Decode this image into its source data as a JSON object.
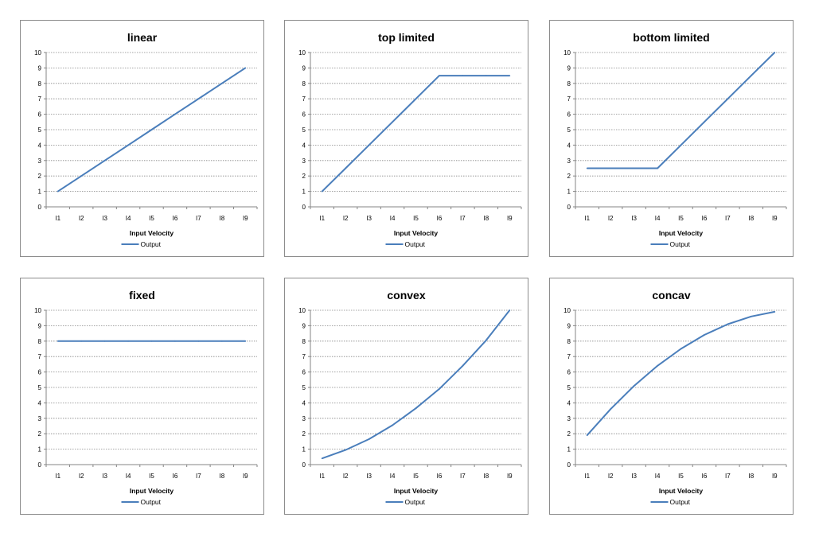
{
  "chart_data": [
    {
      "type": "line",
      "title": "linear",
      "xlabel": "Input Velocity",
      "ylabel": "",
      "categories": [
        "I1",
        "I2",
        "I3",
        "I4",
        "I5",
        "I6",
        "I7",
        "I8",
        "I9"
      ],
      "ylim": [
        0,
        10
      ],
      "yticks": [
        "0",
        "1",
        "2",
        "3",
        "4",
        "5",
        "6",
        "7",
        "8",
        "9",
        "10"
      ],
      "grid": true,
      "legend_position": "bottom",
      "series": [
        {
          "name": "Output",
          "values": [
            1,
            2,
            3,
            4,
            5,
            6,
            7,
            8,
            9
          ]
        }
      ]
    },
    {
      "type": "line",
      "title": "top limited",
      "xlabel": "Input Velocity",
      "ylabel": "",
      "categories": [
        "I1",
        "I2",
        "I3",
        "I4",
        "I5",
        "I6",
        "I7",
        "I8",
        "I9"
      ],
      "ylim": [
        0,
        10
      ],
      "yticks": [
        "0",
        "1",
        "2",
        "3",
        "4",
        "5",
        "6",
        "7",
        "8",
        "9",
        "10"
      ],
      "grid": true,
      "legend_position": "bottom",
      "series": [
        {
          "name": "Output",
          "values": [
            1,
            2.5,
            4,
            5.5,
            7,
            8.5,
            8.5,
            8.5,
            8.5
          ]
        }
      ]
    },
    {
      "type": "line",
      "title": "bottom limited",
      "xlabel": "Input Velocity",
      "ylabel": "",
      "categories": [
        "I1",
        "I2",
        "I3",
        "I4",
        "I5",
        "I6",
        "I7",
        "I8",
        "I9"
      ],
      "ylim": [
        0,
        10
      ],
      "yticks": [
        "0",
        "1",
        "2",
        "3",
        "4",
        "5",
        "6",
        "7",
        "8",
        "9",
        "10"
      ],
      "grid": true,
      "legend_position": "bottom",
      "series": [
        {
          "name": "Output",
          "values": [
            2.5,
            2.5,
            2.5,
            2.5,
            4,
            5.5,
            7,
            8.5,
            10
          ]
        }
      ]
    },
    {
      "type": "line",
      "title": "fixed",
      "xlabel": "Input Velocity",
      "ylabel": "",
      "categories": [
        "I1",
        "I2",
        "I3",
        "I4",
        "I5",
        "I6",
        "I7",
        "I8",
        "I9"
      ],
      "ylim": [
        0,
        10
      ],
      "yticks": [
        "0",
        "1",
        "2",
        "3",
        "4",
        "5",
        "6",
        "7",
        "8",
        "9",
        "10"
      ],
      "grid": true,
      "legend_position": "bottom",
      "series": [
        {
          "name": "Output",
          "values": [
            8,
            8,
            8,
            8,
            8,
            8,
            8,
            8,
            8
          ]
        }
      ]
    },
    {
      "type": "line",
      "title": "convex",
      "xlabel": "Input Velocity",
      "ylabel": "",
      "categories": [
        "I1",
        "I2",
        "I3",
        "I4",
        "I5",
        "I6",
        "I7",
        "I8",
        "I9"
      ],
      "ylim": [
        0,
        10
      ],
      "yticks": [
        "0",
        "1",
        "2",
        "3",
        "4",
        "5",
        "6",
        "7",
        "8",
        "9",
        "10"
      ],
      "grid": true,
      "legend_position": "bottom",
      "series": [
        {
          "name": "Output",
          "values": [
            0.4,
            0.95,
            1.65,
            2.55,
            3.65,
            4.9,
            6.4,
            8.05,
            10
          ]
        }
      ]
    },
    {
      "type": "line",
      "title": "concav",
      "xlabel": "Input Velocity",
      "ylabel": "",
      "categories": [
        "I1",
        "I2",
        "I3",
        "I4",
        "I5",
        "I6",
        "I7",
        "I8",
        "I9"
      ],
      "ylim": [
        0,
        10
      ],
      "yticks": [
        "0",
        "1",
        "2",
        "3",
        "4",
        "5",
        "6",
        "7",
        "8",
        "9",
        "10"
      ],
      "grid": true,
      "legend_position": "bottom",
      "series": [
        {
          "name": "Output",
          "values": [
            1.9,
            3.6,
            5.1,
            6.4,
            7.5,
            8.4,
            9.1,
            9.6,
            9.9
          ]
        }
      ]
    }
  ],
  "colors": {
    "line": "#4a7ebb",
    "grid": "#868686",
    "axis": "#868686",
    "border": "#8c8c8c"
  }
}
